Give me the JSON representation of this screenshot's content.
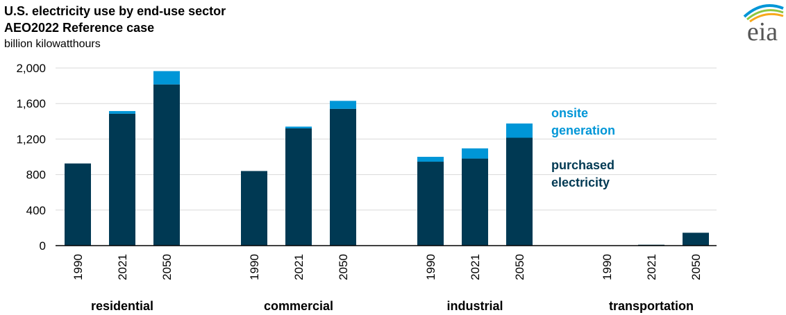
{
  "title": "U.S. electricity use by end-use sector",
  "subtitle": "AEO2022 Reference case",
  "unit_label": "billion kilowatthours",
  "logo_text": "eia",
  "colors": {
    "purchased": "#003953",
    "onsite": "#0096d7",
    "grid": "#d9d9d9",
    "axis": "#000000"
  },
  "chart_data": {
    "type": "bar",
    "stacked": true,
    "title": "U.S. electricity use by end-use sector",
    "subtitle": "AEO2022 Reference case",
    "ylabel": "billion kilowatthours",
    "ylim": [
      0,
      2000
    ],
    "yticks": [
      0,
      400,
      800,
      1200,
      1600,
      2000
    ],
    "ytick_labels": [
      "0",
      "400",
      "800",
      "1,200",
      "1,600",
      "2,000"
    ],
    "grid": true,
    "legend": "inline-right",
    "groups": [
      "residential",
      "commercial",
      "industrial",
      "transportation"
    ],
    "years": [
      "1990",
      "2021",
      "2050"
    ],
    "series": [
      {
        "name": "purchased electricity",
        "color": "#003953",
        "values": [
          [
            925,
            1485,
            1815
          ],
          [
            840,
            1320,
            1540
          ],
          [
            945,
            980,
            1215
          ],
          [
            0,
            10,
            145
          ]
        ]
      },
      {
        "name": "onsite generation",
        "color": "#0096d7",
        "values": [
          [
            0,
            30,
            150
          ],
          [
            0,
            20,
            90
          ],
          [
            55,
            115,
            160
          ],
          [
            0,
            0,
            0
          ]
        ]
      }
    ]
  }
}
